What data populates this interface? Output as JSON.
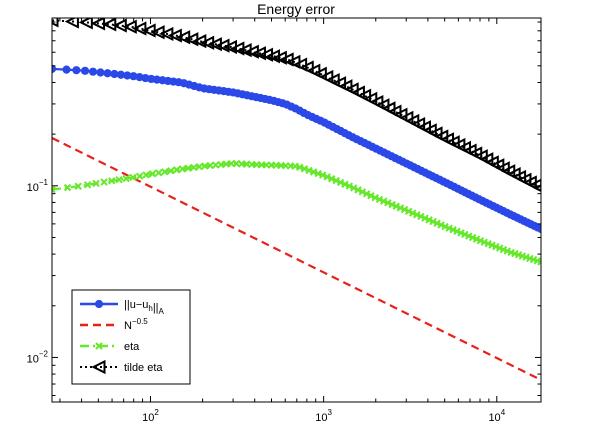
{
  "chart_data": {
    "type": "line",
    "title": "Energy error",
    "xlabel": "",
    "ylabel": "",
    "xscale": "log",
    "yscale": "log",
    "xlim": [
      27,
      18000
    ],
    "ylim": [
      0.0055,
      0.95
    ],
    "grid": false,
    "legend_position": "bottom-left",
    "x_ticks": [
      {
        "value": 100,
        "base": "10",
        "exp": "2"
      },
      {
        "value": 1000,
        "base": "10",
        "exp": "3"
      },
      {
        "value": 10000,
        "base": "10",
        "exp": "4"
      }
    ],
    "y_ticks": [
      {
        "value": 0.01,
        "base": "10",
        "exp": "−2"
      },
      {
        "value": 0.1,
        "base": "10",
        "exp": "−1"
      }
    ],
    "series": [
      {
        "name": "||u−u_h||_A",
        "legend": {
          "parts": [
            {
              "t": "||u−u",
              "s": "n"
            },
            {
              "t": "h",
              "s": "sub"
            },
            {
              "t": "||",
              "s": "n"
            },
            {
              "t": "A",
              "s": "sub"
            }
          ]
        },
        "color": "#2b49e8",
        "line_style": "solid",
        "marker": "circle",
        "x": [
          27,
          40,
          60,
          80,
          100,
          150,
          200,
          300,
          400,
          500,
          600,
          700,
          800,
          1000,
          1500,
          2000,
          3000,
          5000,
          8000,
          12000,
          18000
        ],
        "y": [
          0.48,
          0.47,
          0.45,
          0.435,
          0.42,
          0.4,
          0.37,
          0.35,
          0.33,
          0.315,
          0.3,
          0.28,
          0.26,
          0.235,
          0.19,
          0.165,
          0.135,
          0.105,
          0.083,
          0.068,
          0.056
        ]
      },
      {
        "name": "N^−0.5",
        "legend": {
          "parts": [
            {
              "t": "N",
              "s": "n"
            },
            {
              "t": "−0.5",
              "s": "sup"
            }
          ]
        },
        "color": "#e8211a",
        "line_style": "dashed",
        "marker": "none",
        "x": [
          27,
          18000
        ],
        "y": [
          0.19,
          0.0074
        ]
      },
      {
        "name": "eta",
        "legend": {
          "parts": [
            {
              "t": "eta",
              "s": "n"
            }
          ]
        },
        "color": "#66e82b",
        "line_style": "dashdot",
        "marker": "x",
        "x": [
          27,
          40,
          60,
          80,
          100,
          150,
          200,
          300,
          400,
          500,
          600,
          700,
          1000,
          1500,
          2000,
          3000,
          5000,
          8000,
          12000,
          18000
        ],
        "y": [
          0.095,
          0.1,
          0.107,
          0.112,
          0.117,
          0.125,
          0.13,
          0.135,
          0.133,
          0.132,
          0.131,
          0.13,
          0.115,
          0.097,
          0.085,
          0.072,
          0.058,
          0.048,
          0.041,
          0.036
        ]
      },
      {
        "name": "tilde eta",
        "legend": {
          "parts": [
            {
              "t": "tilde eta",
              "s": "n"
            }
          ]
        },
        "color": "#000000",
        "line_style": "dotted",
        "marker": "triangle-left",
        "x": [
          27,
          40,
          60,
          80,
          100,
          150,
          200,
          300,
          400,
          600,
          700,
          800,
          1000,
          1500,
          2000,
          3000,
          5000,
          8000,
          12000,
          18000
        ],
        "y": [
          0.92,
          0.9,
          0.87,
          0.84,
          0.8,
          0.74,
          0.69,
          0.64,
          0.6,
          0.55,
          0.52,
          0.49,
          0.44,
          0.36,
          0.31,
          0.25,
          0.19,
          0.15,
          0.12,
          0.097
        ]
      }
    ]
  }
}
